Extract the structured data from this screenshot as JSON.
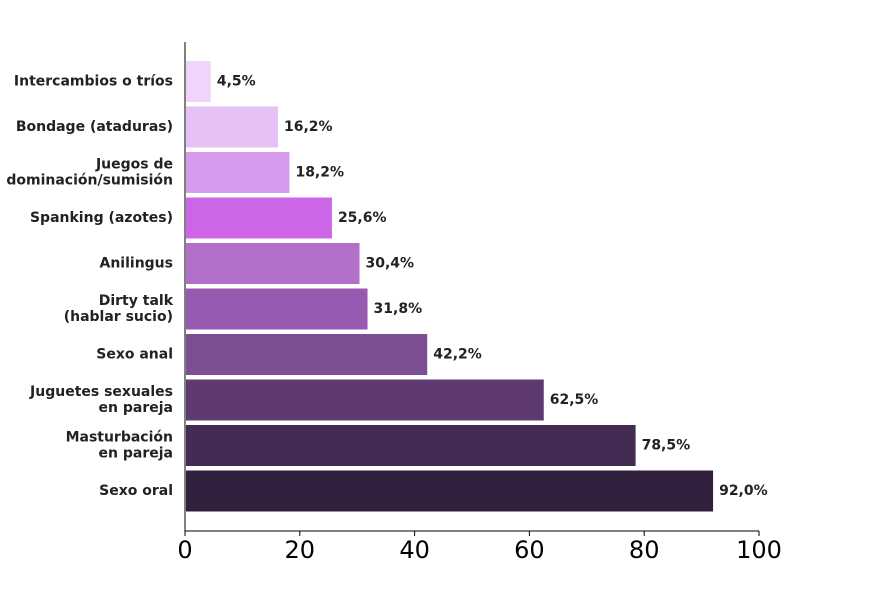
{
  "chart_data": {
    "type": "bar",
    "orientation": "horizontal",
    "title": "",
    "xlabel": "",
    "ylabel": "",
    "xlim": [
      0,
      100
    ],
    "xticks": [
      0,
      20,
      40,
      60,
      80,
      100
    ],
    "grid": false,
    "legend": "none",
    "categories": [
      [
        "Intercambios o tríos"
      ],
      [
        "Bondage (ataduras)"
      ],
      [
        "Juegos de",
        "dominación/sumisión"
      ],
      [
        "Spanking (azotes)"
      ],
      [
        "Anilingus"
      ],
      [
        "Dirty talk",
        "(hablar sucio)"
      ],
      [
        "Sexo anal"
      ],
      [
        "Juguetes sexuales",
        "en pareja"
      ],
      [
        "Masturbación",
        "en pareja"
      ],
      [
        "Sexo oral"
      ]
    ],
    "values": [
      4.5,
      16.2,
      18.2,
      25.6,
      30.4,
      31.8,
      42.2,
      62.5,
      78.5,
      92.0
    ],
    "value_labels": [
      "4,5%",
      "16,2%",
      "18,2%",
      "25,6%",
      "30,4%",
      "31,8%",
      "42,2%",
      "62,5%",
      "78,5%",
      "92,0%"
    ],
    "colors": [
      "#f0d4fa",
      "#e6c1f6",
      "#d79aec",
      "#cc66e6",
      "#b270c9",
      "#9859b1",
      "#7e4e92",
      "#5f3a70",
      "#432b53",
      "#30203d"
    ]
  }
}
